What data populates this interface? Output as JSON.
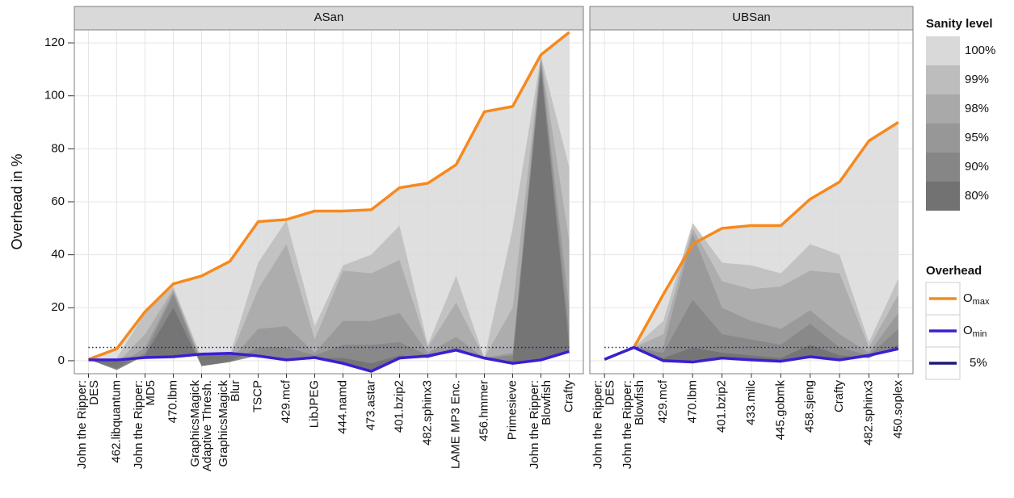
{
  "chart_data": {
    "type": "area",
    "ylabel": "Overhead in %",
    "ylim": [
      -4.9,
      124.9
    ],
    "yticks": [
      0,
      20,
      40,
      60,
      80,
      100,
      120
    ],
    "grid": true,
    "fill_legend_title": "Sanity level",
    "line_legend_title": "Overhead",
    "levels": [
      {
        "name": "100%",
        "color": "#d9d9d9"
      },
      {
        "name": "99%",
        "color": "#bdbdbd"
      },
      {
        "name": "98%",
        "color": "#a9a9a9"
      },
      {
        "name": "95%",
        "color": "#979797"
      },
      {
        "name": "90%",
        "color": "#868686"
      },
      {
        "name": "80%",
        "color": "#727272"
      }
    ],
    "lines": [
      {
        "name": "O",
        "subscript": "max",
        "color": "#f58a1f"
      },
      {
        "name": "O",
        "subscript": "min",
        "color": "#3a1fd1"
      }
    ],
    "reference": {
      "name": "5%",
      "value": 5,
      "color": "#1c1a7a"
    },
    "facets": [
      {
        "title": "ASan",
        "categories": [
          [
            "John the Ripper:",
            "DES"
          ],
          [
            "462.libquantum"
          ],
          [
            "John the Ripper:",
            "MD5"
          ],
          [
            "470.lbm"
          ],
          [
            "GraphicsMagick",
            "Adaptive Thresh."
          ],
          [
            "GraphicsMagick",
            "Blur"
          ],
          [
            "TSCP"
          ],
          [
            "429.mcf"
          ],
          [
            "LibJPEG"
          ],
          [
            "444.namd"
          ],
          [
            "473.astar"
          ],
          [
            "401.bzip2"
          ],
          [
            "482.sphinx3"
          ],
          [
            "LAME MP3 Enc."
          ],
          [
            "456.hmmer"
          ],
          [
            "Primesieve"
          ],
          [
            "John the Ripper:",
            "Blowfish"
          ],
          [
            "Crafty"
          ]
        ],
        "level_values": [
          [
            0.5,
            4.5,
            18.5,
            29,
            32,
            37.5,
            52.5,
            53.3,
            56.5,
            56.5,
            57,
            65.3,
            67,
            74,
            94,
            96,
            115.5,
            124
          ],
          [
            0.5,
            1,
            18,
            28,
            1,
            2,
            37,
            53,
            13,
            36,
            40,
            51,
            6,
            32,
            1,
            50,
            115,
            73
          ],
          [
            0.5,
            -1,
            10,
            27,
            0,
            1,
            27,
            44,
            8,
            34,
            33,
            38,
            5,
            22,
            1,
            20,
            115,
            45
          ],
          [
            0.5,
            -2,
            5,
            26,
            -1,
            0,
            12,
            13,
            3,
            15,
            15,
            18,
            3,
            9,
            1,
            3,
            114,
            20
          ],
          [
            0.5,
            -3,
            3,
            25,
            -2,
            -0.5,
            5,
            5,
            2,
            6,
            6,
            7,
            2,
            5,
            1,
            2,
            113,
            10
          ],
          [
            0.5,
            -3.5,
            2,
            20,
            -2,
            -0.5,
            2,
            1,
            1,
            1,
            -1,
            2,
            1,
            4,
            0.5,
            0,
            110,
            5
          ]
        ],
        "line_values": [
          [
            0.5,
            4.5,
            18.5,
            29,
            32,
            37.5,
            52.5,
            53.3,
            56.5,
            56.5,
            57,
            65.3,
            67,
            74,
            94,
            96,
            115.5,
            124
          ],
          [
            0.3,
            0.3,
            1.2,
            1.5,
            2.5,
            2.8,
            1.8,
            0.3,
            1.2,
            -1,
            -4,
            1,
            1.8,
            4,
            1,
            -1,
            0.3,
            3.5
          ]
        ]
      },
      {
        "title": "UBSan",
        "categories": [
          [
            "John the Ripper:",
            "DES"
          ],
          [
            "John the Ripper:",
            "Blowfish"
          ],
          [
            "429.mcf"
          ],
          [
            "470.lbm"
          ],
          [
            "401.bzip2"
          ],
          [
            "433.milc"
          ],
          [
            "445.gobmk"
          ],
          [
            "458.sjeng"
          ],
          [
            "Crafty"
          ],
          [
            "482.sphinx3"
          ],
          [
            "450.soplex"
          ]
        ],
        "level_values": [
          [
            0.5,
            5,
            25,
            44,
            50,
            51,
            51,
            61,
            67.5,
            83,
            90
          ],
          [
            0.5,
            5,
            15,
            52,
            37,
            36,
            33,
            44,
            40,
            7,
            31
          ],
          [
            0.5,
            5,
            10,
            50,
            30,
            27,
            28,
            34,
            33,
            5,
            25
          ],
          [
            0.5,
            5,
            5,
            48,
            20,
            15,
            12,
            19,
            10,
            3,
            18
          ],
          [
            0.5,
            5,
            3,
            23,
            10,
            8,
            6,
            14,
            5,
            2,
            12
          ],
          [
            0.5,
            5,
            1,
            5,
            3,
            2,
            1,
            6,
            2,
            1,
            6
          ]
        ],
        "line_values": [
          [
            0.5,
            5,
            25,
            44,
            50,
            51,
            51,
            61,
            67.5,
            83,
            90
          ],
          [
            0.5,
            5,
            0,
            -0.5,
            1,
            0.3,
            -0.2,
            1.5,
            0.3,
            2,
            4.5
          ]
        ]
      }
    ]
  }
}
